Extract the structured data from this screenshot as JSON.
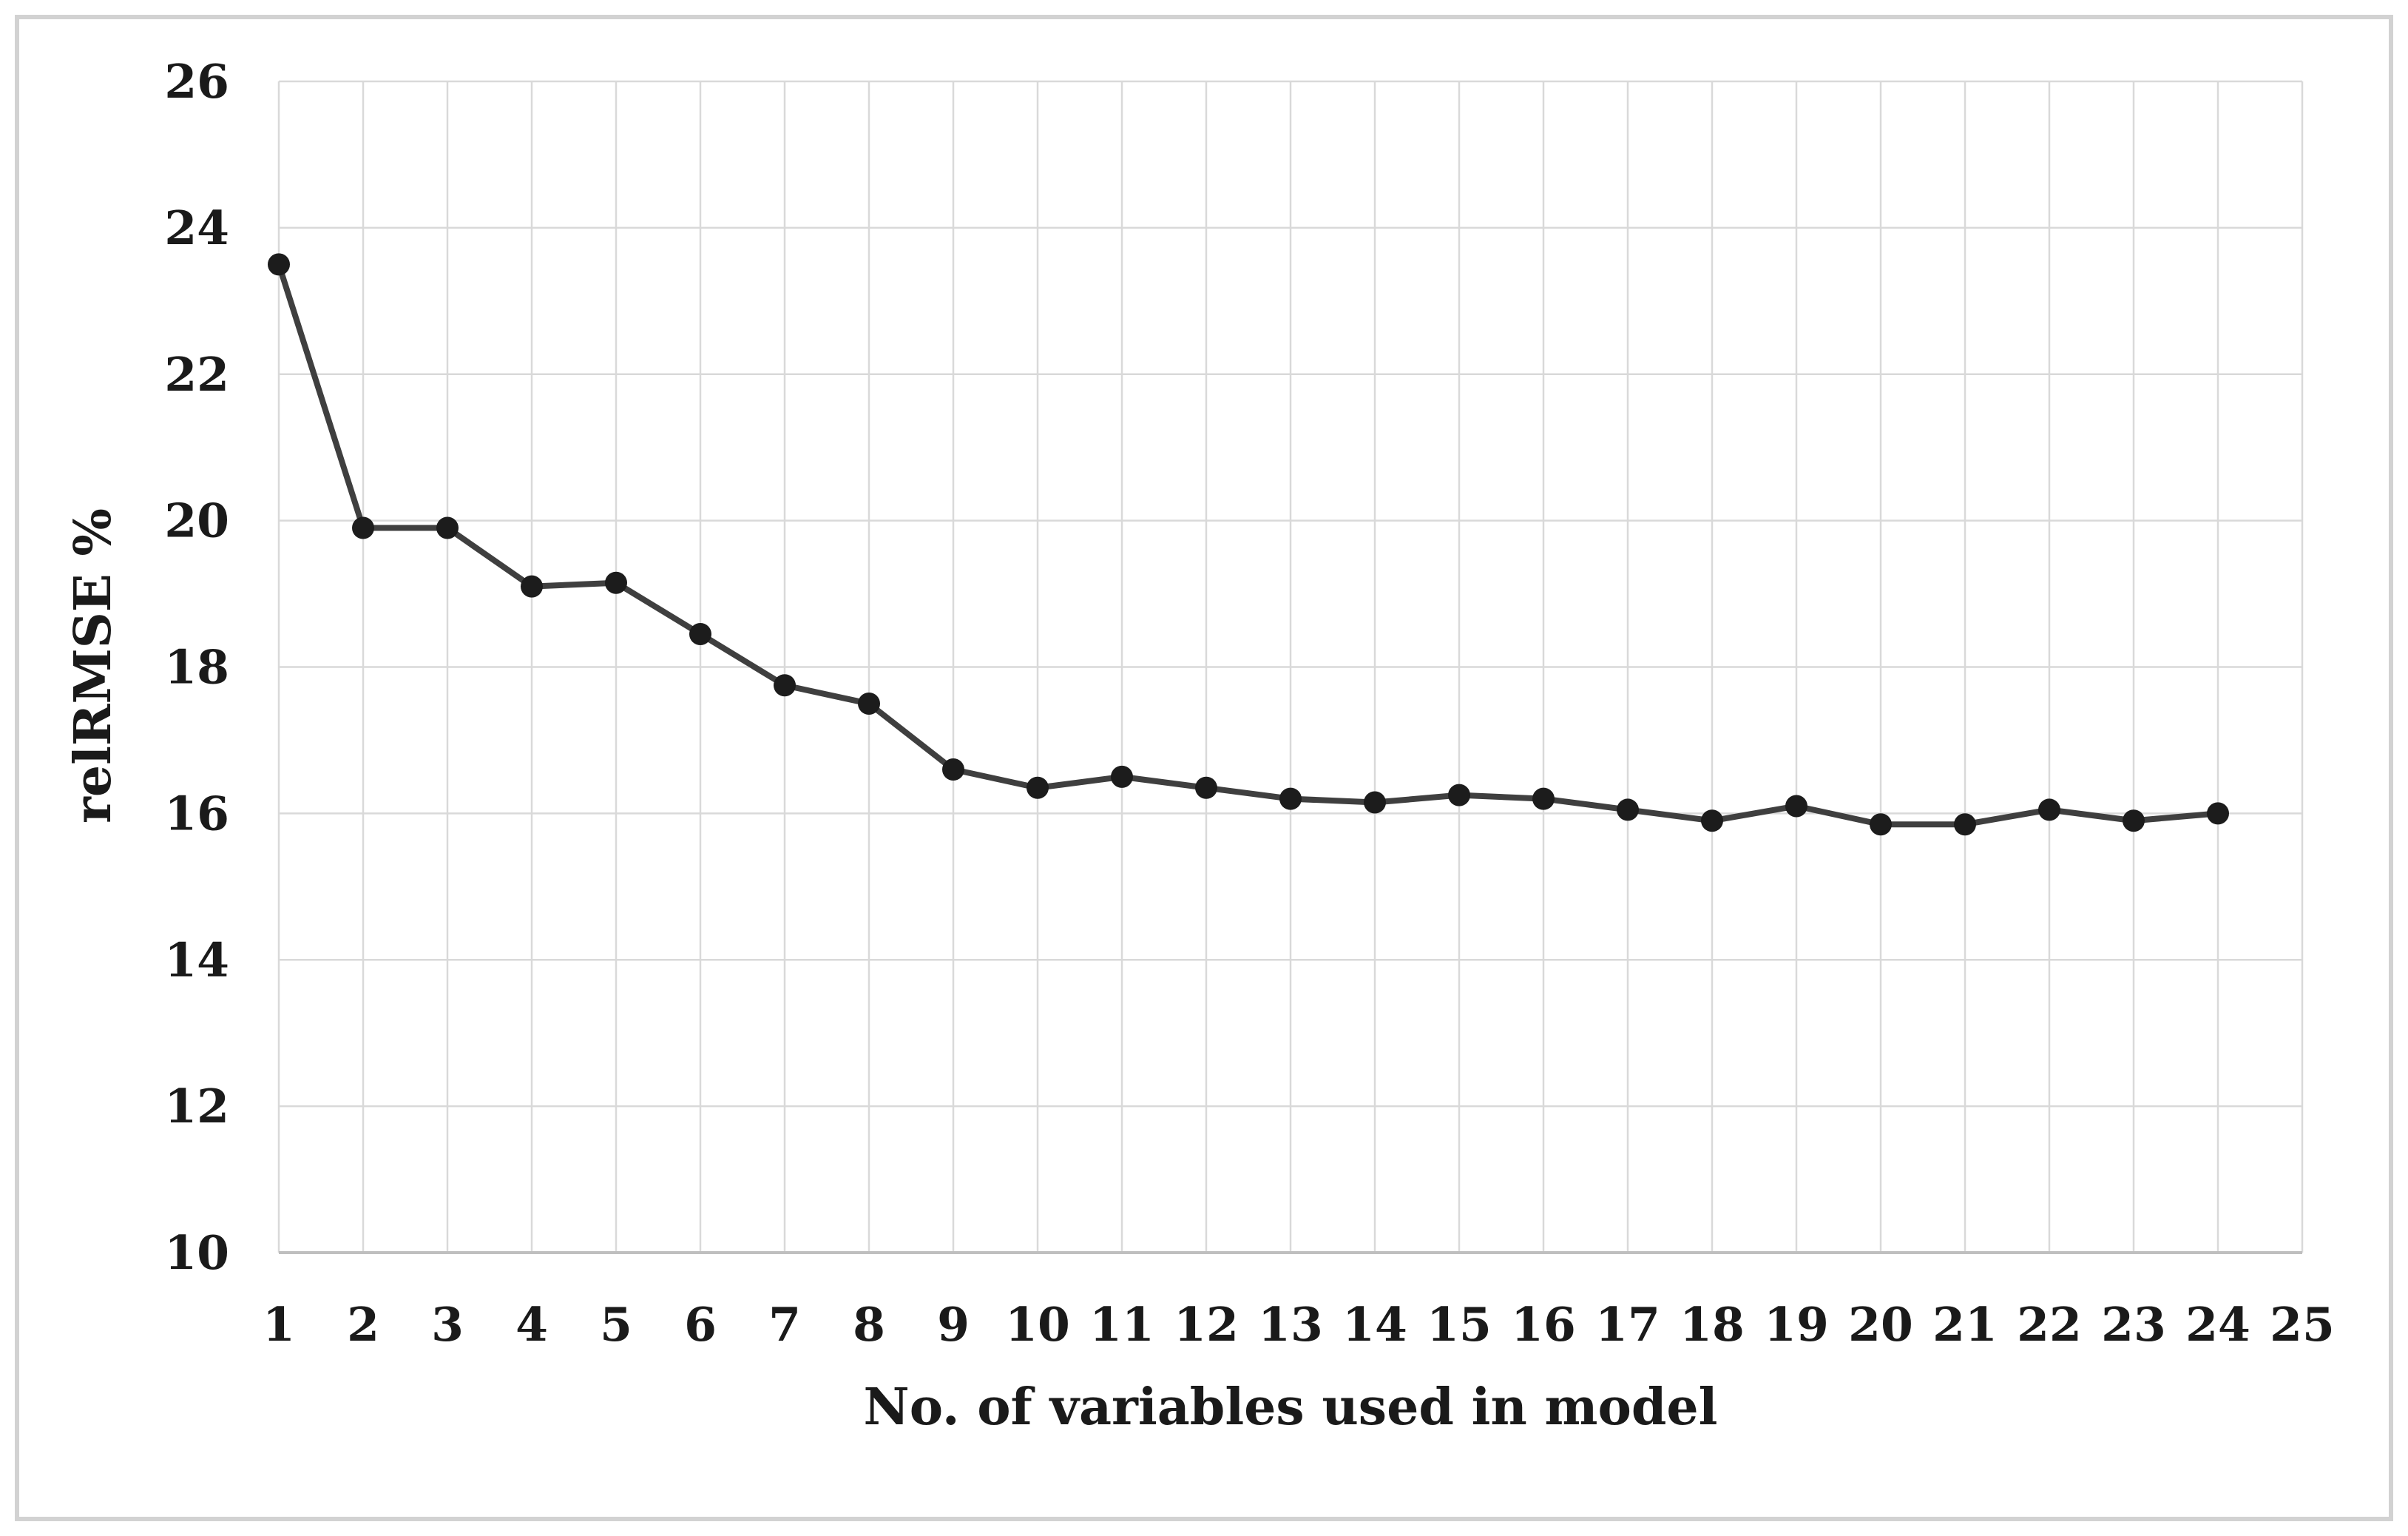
{
  "figure": {
    "background": "#ffffff",
    "border_color": "#d2d2d2"
  },
  "chart_data": {
    "type": "line",
    "title": "",
    "xlabel": "No. of variables used in model",
    "ylabel": "relRMSE %",
    "x": [
      1,
      2,
      3,
      4,
      5,
      6,
      7,
      8,
      9,
      10,
      11,
      12,
      13,
      14,
      15,
      16,
      17,
      18,
      19,
      20,
      21,
      22,
      23,
      24
    ],
    "values": [
      23.5,
      19.9,
      19.9,
      19.1,
      19.15,
      18.45,
      17.75,
      17.5,
      16.6,
      16.35,
      16.5,
      16.35,
      16.2,
      16.15,
      16.25,
      16.2,
      16.05,
      15.9,
      16.1,
      15.85,
      15.85,
      16.05,
      15.9,
      16.0
    ],
    "x_ticks": [
      1,
      2,
      3,
      4,
      5,
      6,
      7,
      8,
      9,
      10,
      11,
      12,
      13,
      14,
      15,
      16,
      17,
      18,
      19,
      20,
      21,
      22,
      23,
      24,
      25
    ],
    "y_ticks": [
      10,
      12,
      14,
      16,
      18,
      20,
      22,
      24,
      26
    ],
    "xlim": [
      1,
      25
    ],
    "ylim": [
      10,
      26
    ],
    "grid": true,
    "legend": "none",
    "series_name": "relRMSE %",
    "line_color": "#3f3f3f",
    "marker_color": "#1c1c1c",
    "gridline_color": "#d9d9d9",
    "axis_line_color": "#bfbfbf",
    "tick_label_color": "#1a1a1a"
  }
}
